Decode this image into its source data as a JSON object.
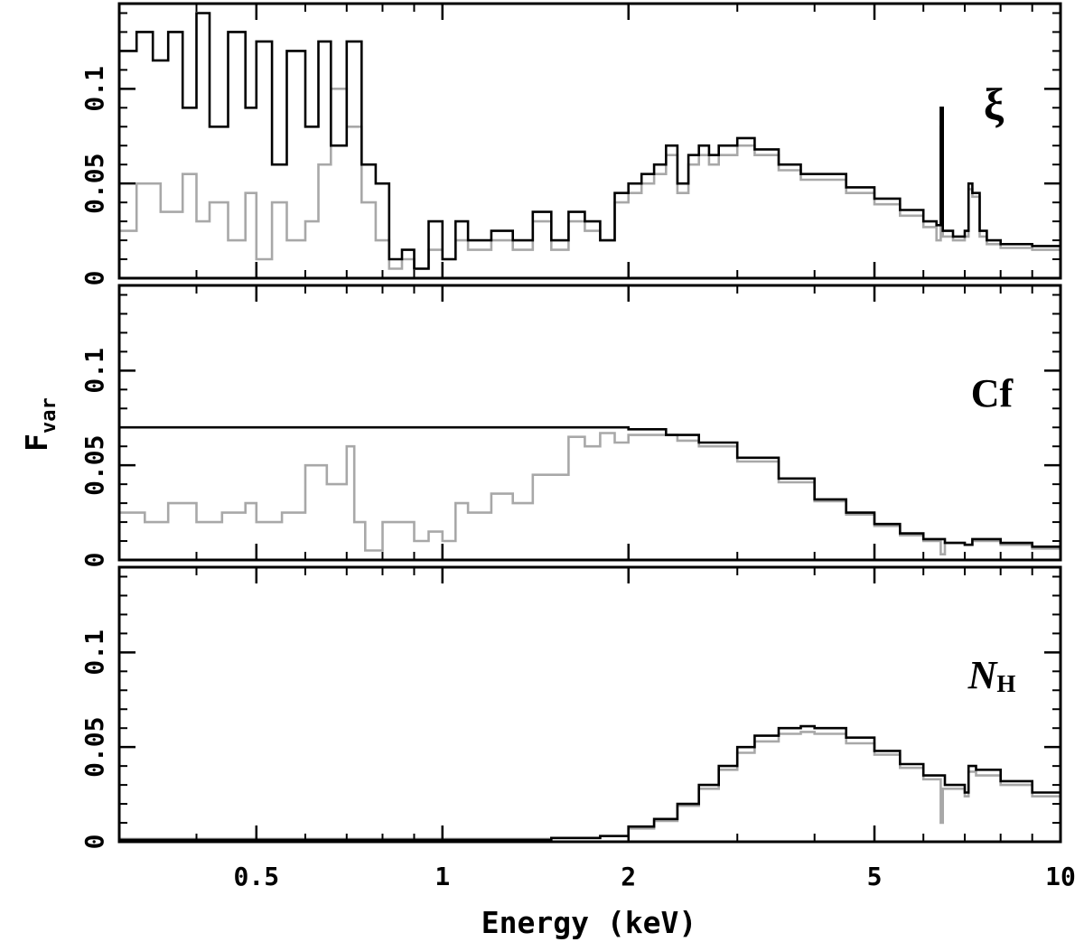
{
  "chart_data": {
    "type": "line",
    "xlabel": "Energy (keV)",
    "ylabel_main": "F",
    "ylabel_sub": "var",
    "xscale": "log",
    "xlim": [
      0.3,
      10
    ],
    "x_ticks": [
      0.5,
      1,
      2,
      5,
      10
    ],
    "x_tick_labels": [
      "0.5",
      "1",
      "2",
      "5",
      "10"
    ],
    "ylim": [
      0,
      0.145
    ],
    "y_ticks": [
      0,
      0.05,
      0.1
    ],
    "y_tick_labels": [
      "0",
      "0.05",
      "0.1"
    ],
    "series_colors": {
      "black": "#000000",
      "grey": "#a8a8a8"
    },
    "panels": [
      {
        "id": "xi",
        "label": "ξ",
        "label_sub": "",
        "series": [
          {
            "name": "black",
            "color": "#000000",
            "x": [
              0.3,
              0.32,
              0.34,
              0.36,
              0.38,
              0.4,
              0.42,
              0.45,
              0.48,
              0.5,
              0.53,
              0.56,
              0.6,
              0.63,
              0.66,
              0.7,
              0.74,
              0.78,
              0.82,
              0.86,
              0.9,
              0.95,
              1.0,
              1.05,
              1.1,
              1.2,
              1.3,
              1.4,
              1.5,
              1.6,
              1.7,
              1.8,
              1.9,
              2.0,
              2.1,
              2.2,
              2.3,
              2.4,
              2.5,
              2.6,
              2.7,
              2.8,
              3.0,
              3.2,
              3.5,
              3.8,
              4.0,
              4.5,
              5.0,
              5.5,
              6.0,
              6.3,
              6.4,
              6.45,
              6.5,
              6.7,
              7.0,
              7.1,
              7.2,
              7.4,
              7.6,
              8.0,
              9.0,
              10.0
            ],
            "y": [
              0.12,
              0.13,
              0.115,
              0.13,
              0.09,
              0.14,
              0.08,
              0.13,
              0.09,
              0.125,
              0.06,
              0.12,
              0.08,
              0.125,
              0.07,
              0.125,
              0.06,
              0.05,
              0.01,
              0.015,
              0.005,
              0.03,
              0.01,
              0.03,
              0.02,
              0.025,
              0.02,
              0.035,
              0.02,
              0.035,
              0.03,
              0.02,
              0.045,
              0.05,
              0.055,
              0.06,
              0.07,
              0.05,
              0.065,
              0.07,
              0.065,
              0.07,
              0.074,
              0.068,
              0.06,
              0.055,
              0.055,
              0.048,
              0.042,
              0.036,
              0.03,
              0.028,
              0.09,
              0.025,
              0.025,
              0.022,
              0.025,
              0.05,
              0.045,
              0.025,
              0.02,
              0.018,
              0.017,
              0.016
            ]
          },
          {
            "name": "grey",
            "color": "#a8a8a8",
            "x": [
              0.3,
              0.32,
              0.35,
              0.38,
              0.4,
              0.42,
              0.45,
              0.48,
              0.5,
              0.53,
              0.56,
              0.6,
              0.63,
              0.66,
              0.7,
              0.74,
              0.78,
              0.82,
              0.86,
              0.9,
              0.95,
              1.0,
              1.05,
              1.1,
              1.2,
              1.3,
              1.4,
              1.5,
              1.6,
              1.7,
              1.8,
              1.9,
              2.0,
              2.1,
              2.2,
              2.3,
              2.4,
              2.5,
              2.6,
              2.7,
              2.8,
              3.0,
              3.2,
              3.5,
              3.8,
              4.0,
              4.5,
              5.0,
              5.5,
              6.0,
              6.3,
              6.4,
              6.45,
              6.5,
              6.7,
              7.0,
              7.1,
              7.2,
              7.4,
              7.6,
              8.0,
              9.0,
              10.0
            ],
            "y": [
              0.025,
              0.05,
              0.035,
              0.055,
              0.03,
              0.04,
              0.02,
              0.045,
              0.01,
              0.04,
              0.02,
              0.03,
              0.06,
              0.1,
              0.08,
              0.04,
              0.02,
              0.005,
              0.01,
              0.005,
              0.015,
              0.01,
              0.02,
              0.015,
              0.02,
              0.015,
              0.03,
              0.015,
              0.03,
              0.025,
              0.02,
              0.04,
              0.045,
              0.05,
              0.055,
              0.065,
              0.045,
              0.06,
              0.065,
              0.06,
              0.065,
              0.07,
              0.065,
              0.057,
              0.052,
              0.052,
              0.045,
              0.039,
              0.033,
              0.027,
              0.02,
              0.08,
              0.022,
              0.022,
              0.02,
              0.022,
              0.047,
              0.043,
              0.022,
              0.018,
              0.016,
              0.015,
              0.015
            ]
          }
        ]
      },
      {
        "id": "cf",
        "label": "Cf",
        "label_sub": "",
        "series": [
          {
            "name": "black",
            "color": "#000000",
            "x": [
              0.3,
              0.5,
              1.0,
              1.5,
              1.8,
              2.0,
              2.3,
              2.6,
              3.0,
              3.5,
              4.0,
              4.5,
              5.0,
              5.5,
              6.0,
              6.5,
              7.0,
              7.2,
              7.4,
              8.0,
              9.0,
              10.0
            ],
            "y": [
              0.07,
              0.07,
              0.07,
              0.07,
              0.07,
              0.069,
              0.066,
              0.062,
              0.054,
              0.043,
              0.032,
              0.025,
              0.019,
              0.014,
              0.011,
              0.009,
              0.008,
              0.011,
              0.011,
              0.009,
              0.007,
              0.006
            ]
          },
          {
            "name": "grey",
            "color": "#a8a8a8",
            "x": [
              0.3,
              0.33,
              0.36,
              0.4,
              0.44,
              0.48,
              0.5,
              0.55,
              0.6,
              0.65,
              0.7,
              0.72,
              0.75,
              0.8,
              0.85,
              0.9,
              0.95,
              1.0,
              1.05,
              1.1,
              1.2,
              1.3,
              1.4,
              1.5,
              1.6,
              1.7,
              1.8,
              1.9,
              2.0,
              2.2,
              2.4,
              2.6,
              3.0,
              3.5,
              4.0,
              4.5,
              5.0,
              5.5,
              6.0,
              6.4,
              6.5,
              7.0,
              7.2,
              8.0,
              9.0,
              10.0
            ],
            "y": [
              0.025,
              0.02,
              0.03,
              0.02,
              0.025,
              0.03,
              0.02,
              0.025,
              0.05,
              0.04,
              0.06,
              0.02,
              0.005,
              0.02,
              0.02,
              0.01,
              0.015,
              0.01,
              0.03,
              0.025,
              0.035,
              0.03,
              0.045,
              0.045,
              0.065,
              0.06,
              0.067,
              0.062,
              0.066,
              0.066,
              0.063,
              0.06,
              0.052,
              0.041,
              0.031,
              0.024,
              0.018,
              0.013,
              0.01,
              0.003,
              0.009,
              0.008,
              0.01,
              0.008,
              0.006,
              0.005
            ]
          }
        ]
      },
      {
        "id": "nh",
        "label": "N",
        "label_sub": "H",
        "series": [
          {
            "name": "black",
            "color": "#000000",
            "x": [
              0.3,
              0.5,
              1.0,
              1.5,
              1.8,
              2.0,
              2.2,
              2.4,
              2.6,
              2.8,
              3.0,
              3.2,
              3.5,
              3.8,
              4.0,
              4.5,
              5.0,
              5.5,
              6.0,
              6.5,
              7.0,
              7.1,
              7.3,
              8.0,
              9.0,
              10.0
            ],
            "y": [
              0.001,
              0.001,
              0.001,
              0.002,
              0.003,
              0.008,
              0.012,
              0.02,
              0.03,
              0.04,
              0.05,
              0.056,
              0.06,
              0.061,
              0.06,
              0.055,
              0.048,
              0.041,
              0.035,
              0.03,
              0.026,
              0.04,
              0.038,
              0.032,
              0.026,
              0.021
            ]
          },
          {
            "name": "grey",
            "color": "#a8a8a8",
            "x": [
              0.3,
              0.5,
              1.0,
              1.5,
              1.8,
              2.0,
              2.2,
              2.4,
              2.6,
              2.8,
              3.0,
              3.2,
              3.5,
              3.8,
              4.0,
              4.5,
              5.0,
              5.5,
              6.0,
              6.4,
              6.45,
              6.5,
              7.0,
              7.1,
              7.3,
              8.0,
              9.0,
              10.0
            ],
            "y": [
              0.0015,
              0.0015,
              0.0015,
              0.002,
              0.003,
              0.007,
              0.011,
              0.019,
              0.028,
              0.038,
              0.047,
              0.053,
              0.057,
              0.058,
              0.057,
              0.052,
              0.046,
              0.039,
              0.033,
              0.01,
              0.028,
              0.028,
              0.024,
              0.037,
              0.035,
              0.03,
              0.024,
              0.02
            ]
          }
        ]
      }
    ]
  }
}
